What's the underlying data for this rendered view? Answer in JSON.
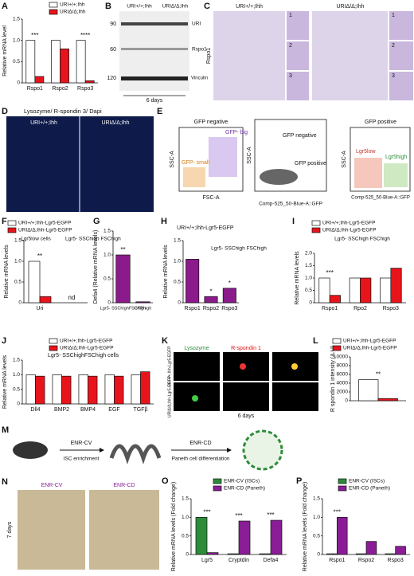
{
  "chart_data": [
    {
      "type": "bar",
      "label": "A",
      "ylabel": "Relative mRNA level",
      "categories": [
        "Rspo1",
        "Rspo2",
        "Rspo3"
      ],
      "series": [
        {
          "name": "URI+/+;Ihh",
          "color": "#ffffff",
          "values": [
            1.0,
            1.0,
            1.0
          ]
        },
        {
          "name": "URIΔ/Δ;Ihh",
          "color": "#e8141c",
          "values": [
            0.15,
            0.8,
            0.05
          ]
        }
      ],
      "ylim": [
        0,
        1.5
      ],
      "yticks": [
        0,
        0.5,
        {
          "value": 1,
          "label": "1.0"
        },
        1.5
      ],
      "annotations": [
        {
          "text": "***",
          "at": 0
        },
        {
          "text": "****",
          "at": 2
        }
      ]
    },
    {
      "type": "bar",
      "label": "F",
      "ylabel": "Relative mRNA levels",
      "categories": [
        "Uri",
        null
      ],
      "series": [
        {
          "name": "URI+/+;Ihh-Lgr5-EGFP",
          "color": "#ffffff",
          "values": [
            1.0,
            null
          ]
        },
        {
          "name": "URIΔ/Δ;Ihh-Lgr5-EGFP",
          "color": "#e8141c",
          "values": [
            0.15,
            null
          ]
        }
      ],
      "ylim": [
        0,
        1.5
      ],
      "yticks": [
        0,
        0.5,
        {
          "value": 1,
          "label": "1.0"
        },
        1.5
      ],
      "notes": [
        "Lgr5low cells",
        "Lgr5- SSChigh FSChigh"
      ],
      "annotations": [
        {
          "text": "**",
          "at": 0
        },
        {
          "text": "nd",
          "at": 1
        }
      ]
    },
    {
      "type": "bar",
      "label": "G",
      "ylabel": "Defa4 (Relative mRNA levels)",
      "categories": [
        "Lgr5- SSChighFSChigh",
        "GFPhigh"
      ],
      "series": [
        {
          "color": "#8b1a8b",
          "values": [
            1.0,
            0.02
          ]
        }
      ],
      "ylim": [
        0,
        1.5
      ],
      "yticks": [
        0,
        0.5,
        {
          "value": 1,
          "label": "1.0"
        },
        1.5
      ],
      "annotations": [
        {
          "text": "**",
          "at": 0
        }
      ]
    },
    {
      "type": "bar",
      "label": "H",
      "title": "URI+/+;Ihh-Lgr5-EGFP",
      "ylabel": "Relative mRNA levels",
      "categories": [
        "Rspo1",
        "Rspo2",
        "Rspo3"
      ],
      "series": [
        {
          "color": "#8b1a8b",
          "values": [
            1.05,
            0.15,
            0.35
          ]
        }
      ],
      "ylim": [
        0,
        1.5
      ],
      "yticks": [
        0,
        0.5,
        {
          "value": 1,
          "label": "1.0"
        },
        1.5
      ],
      "notes": [
        "Lgr5- SSChigh FSChigh"
      ],
      "annotations": [
        {
          "text": "*",
          "at": 1
        },
        {
          "text": "*",
          "at": 2
        }
      ]
    },
    {
      "type": "bar",
      "label": "I",
      "ylabel": "Relative mRNA levels",
      "categories": [
        "Rspo1",
        "Rpo2",
        "Rspo3"
      ],
      "series": [
        {
          "name": "URI+/+;Ihh-Lgr5-EGFP",
          "color": "#ffffff",
          "values": [
            1.0,
            1.0,
            1.0
          ]
        },
        {
          "name": "URIΔ/Δ;Ihh-Lgr5-EGFP",
          "color": "#e8141c",
          "values": [
            0.3,
            1.0,
            1.4
          ]
        }
      ],
      "ylim": [
        0,
        2
      ],
      "yticks": [
        0,
        0.5,
        {
          "value": 1,
          "label": "1.0"
        },
        1.5,
        {
          "value": 2,
          "label": "2.0"
        }
      ],
      "notes": [
        "Lgr5- SSChigh FSChigh"
      ],
      "annotations": [
        {
          "text": "***",
          "at": 0
        }
      ]
    },
    {
      "type": "bar",
      "label": "J",
      "title": "Lgr5- SSChighFSChigh cells",
      "ylabel": "Relative mRNA levels",
      "categories": [
        "Dll4",
        "BMP2",
        "BMP4",
        "EGF",
        "TGFβ"
      ],
      "series": [
        {
          "name": "URI+/+;Ihh-Lgr5-EGFP",
          "color": "#ffffff",
          "values": [
            1.0,
            1.0,
            1.0,
            1.0,
            1.0
          ]
        },
        {
          "name": "URIΔ/Δ;Ihh-Lgr5-EGFP",
          "color": "#e8141c",
          "values": [
            0.95,
            0.95,
            0.95,
            0.95,
            1.1
          ]
        }
      ],
      "ylim": [
        0,
        1.5
      ],
      "yticks": [
        0,
        0.5,
        {
          "value": 1,
          "label": "1.0"
        },
        1.5
      ]
    },
    {
      "type": "bar",
      "label": "L",
      "ylabel": "R spondin 1 intensity (A.U)",
      "categories": [
        null
      ],
      "series": [
        {
          "name": "URI+/+;Ihh-Lgr5-EGFP",
          "color": "#ffffff",
          "values": [
            4800
          ]
        },
        {
          "name": "URIΔ/Δ;Ihh-Lgr5-EGFP",
          "color": "#e8141c",
          "values": [
            500
          ]
        }
      ],
      "ylim": [
        0,
        10000
      ],
      "yticks": [
        0,
        2000,
        4000,
        6000,
        8000,
        10000
      ],
      "annotations": [
        {
          "text": "**",
          "at": 0
        }
      ]
    },
    {
      "type": "bar",
      "label": "O",
      "ylabel": "Relative mRNA levels (Fold change)",
      "categories": [
        "Lgr5",
        "Cryptdin",
        "Defa4"
      ],
      "series": [
        {
          "name": "ENR-CV (ISCs)",
          "color": "#2e8b3a",
          "values": [
            1.0,
            0.02,
            0.02
          ]
        },
        {
          "name": "ENR-CD (Paneth)",
          "color": "#8a1d96",
          "values": [
            0.05,
            0.9,
            0.92
          ]
        }
      ],
      "ylim": [
        0,
        1.5
      ],
      "yticks": [
        0,
        0.5,
        {
          "value": 1,
          "label": "1.0"
        },
        1.5
      ],
      "annotations": [
        {
          "text": "***",
          "at": 0
        },
        {
          "text": "***",
          "at": 1
        },
        {
          "text": "***",
          "at": 2
        }
      ]
    },
    {
      "type": "bar",
      "label": "P",
      "ylabel": "Relative mRNA levels (Fold change)",
      "categories": [
        "Rspo1",
        "Rspo2",
        "Rspo3"
      ],
      "series": [
        {
          "name": "ENR-CV (ISCs)",
          "color": "#2e8b3a",
          "values": [
            0.02,
            0.02,
            0.02
          ]
        },
        {
          "name": "ENR-CD (Paneth)",
          "color": "#8a1d96",
          "values": [
            1.0,
            0.35,
            0.22
          ]
        }
      ],
      "ylim": [
        0,
        1.5
      ],
      "yticks": [
        0,
        0.5,
        {
          "value": 1,
          "label": "1.0"
        },
        1.5
      ],
      "annotations": [
        {
          "text": "***",
          "at": 0
        }
      ]
    }
  ],
  "panels": {
    "B": {
      "label": "B",
      "columns": [
        "URI+/+;Ihh",
        "URIΔ/Δ;Ihh"
      ],
      "markers": [
        "90",
        "60",
        "120"
      ],
      "bands": [
        "URI",
        "Rspo1",
        "Vinculin"
      ],
      "caption": "6 days"
    },
    "C": {
      "label": "C",
      "columns": [
        "URI+/+;Ihh",
        "URIΔ/Δ;Ihh"
      ],
      "gene": "Rspo1",
      "insets": [
        "1",
        "2",
        "3",
        "1",
        "2",
        "3"
      ]
    },
    "D": {
      "label": "D",
      "title": "Lysozyme/ R-spondin 3/ Dapi",
      "columns": [
        "URI+/+;Ihh",
        "URIΔ/Δ;Ihh"
      ]
    },
    "E": {
      "label": "E",
      "left_title": "GFP negative",
      "right_title": "GFP positive",
      "y_axis": "SSC-A",
      "x_axis": "FSC-A",
      "gfp_axis": "Comp-525_50-Blue-A::GFP",
      "gates": [
        "GFP- big",
        "GFP- small",
        "GFP negative",
        "GFP positive",
        "Lgr5low",
        "Lgr5high"
      ]
    },
    "K": {
      "label": "K",
      "channels": [
        "Lysozyme",
        "R-spondin 1"
      ],
      "rows": [
        "URI+/+;Ihh-Lgr5-EGFP",
        "URIΔ/Δ;Ihh-Lgr5-EGFP"
      ],
      "caption": "6 days"
    },
    "M": {
      "label": "M",
      "steps": [
        "ENR-CV",
        "ISC enrichment",
        "ENR-CD",
        "Paneth cell differentiation"
      ]
    },
    "N": {
      "label": "N",
      "columns": [
        "ENR-CV",
        "ENR-CD"
      ],
      "caption": "7 days"
    }
  }
}
